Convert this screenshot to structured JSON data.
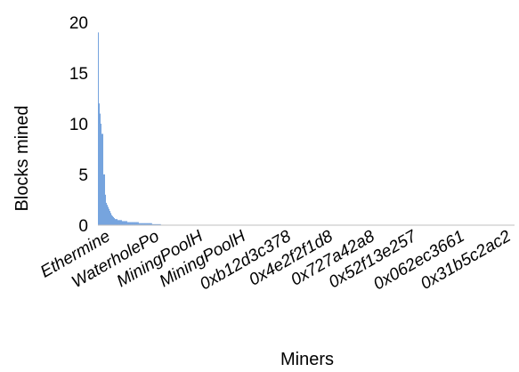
{
  "chart_data": {
    "type": "bar",
    "xlabel": "Miners",
    "ylabel": "Blocks mined",
    "ylim": [
      0,
      20
    ],
    "yticks": [
      0,
      5,
      10,
      15,
      20
    ],
    "grid": false,
    "legend": "none",
    "bar_color": "#4a86d4",
    "categories_shown": [
      "Ethermine",
      "WaterholePo",
      "MiningPoolH",
      "MiningPoolH",
      "0xb12d3c378",
      "0x4e2f2f1d8",
      "0x727a42a8",
      "0x52f13e257",
      "0x062ec3661",
      "0x31b5c2ac2"
    ],
    "values": [
      19,
      12,
      11,
      10,
      9,
      9,
      5,
      5,
      3,
      2.2,
      2,
      1.8,
      1.6,
      1.4,
      1.2,
      1,
      0.9,
      0.8,
      0.7,
      0.6,
      0.6,
      0.6,
      0.5,
      0.5,
      0.5,
      0.5,
      0.5,
      0.4,
      0.4,
      0.4,
      0.4,
      0.4,
      0.4,
      0.3,
      0.3,
      0.3,
      0.3,
      0.3,
      0.3,
      0.3,
      0.3,
      0.3,
      0.3,
      0.3,
      0.3,
      0.3,
      0.2,
      0.2,
      0.2,
      0.2,
      0.2,
      0.2,
      0.2,
      0.2,
      0.2,
      0.2,
      0.2,
      0.2,
      0.2,
      0.2,
      0.2,
      0.1,
      0.1,
      0.1,
      0.1,
      0.1,
      0.1,
      0.1,
      0.1,
      0.1,
      0.1
    ],
    "total_bars": 470
  }
}
